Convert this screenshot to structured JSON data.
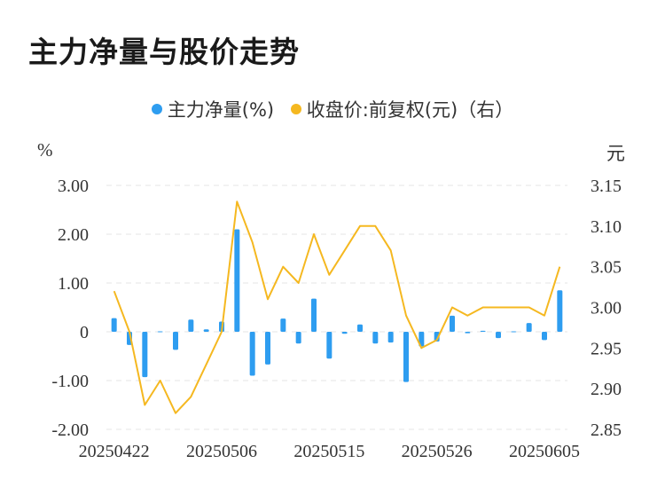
{
  "title": "主力净量与股价走势",
  "legend": {
    "series1": "主力净量(%)",
    "series2": "收盘价:前复权(元)（右）"
  },
  "colors": {
    "bar": "#2e9df0",
    "line": "#f5b820",
    "grid": "#e6e6e6",
    "text": "#333333"
  },
  "chart_data": {
    "type": "bar+line",
    "left_unit": "%",
    "right_unit": "元",
    "ylim_left": [
      -2.0,
      3.0
    ],
    "ylim_right": [
      2.85,
      3.15
    ],
    "left_ticks": [
      "3.00",
      "2.00",
      "1.00",
      "0",
      "-1.00",
      "-2.00"
    ],
    "left_tick_values": [
      3,
      2,
      1,
      0,
      -1,
      -2
    ],
    "right_ticks": [
      "3.15",
      "3.10",
      "3.05",
      "3.00",
      "2.95",
      "2.90",
      "2.85"
    ],
    "right_tick_values": [
      3.15,
      3.1,
      3.05,
      3.0,
      2.95,
      2.9,
      2.85
    ],
    "x_tick_labels": [
      {
        "index": 0,
        "label": "20250422"
      },
      {
        "index": 7,
        "label": "20250506"
      },
      {
        "index": 14,
        "label": "20250515"
      },
      {
        "index": 21,
        "label": "20250526"
      },
      {
        "index": 28,
        "label": "20250605"
      }
    ],
    "bars": [
      0.28,
      -0.27,
      -0.93,
      0.01,
      -0.37,
      0.25,
      0.05,
      0.21,
      2.1,
      -0.9,
      -0.67,
      0.27,
      -0.24,
      0.68,
      -0.55,
      -0.04,
      0.15,
      -0.24,
      -0.22,
      -1.03,
      -0.3,
      -0.2,
      0.33,
      -0.03,
      0.02,
      -0.13,
      0.01,
      0.18,
      -0.17,
      0.85
    ],
    "close": [
      3.02,
      2.97,
      2.88,
      2.91,
      2.87,
      2.89,
      2.93,
      2.97,
      3.13,
      3.08,
      3.01,
      3.05,
      3.03,
      3.09,
      3.04,
      3.07,
      3.1,
      3.1,
      3.07,
      2.99,
      2.95,
      2.96,
      3.0,
      2.99,
      3.0,
      3.0,
      3.0,
      3.0,
      2.99,
      3.05
    ]
  }
}
